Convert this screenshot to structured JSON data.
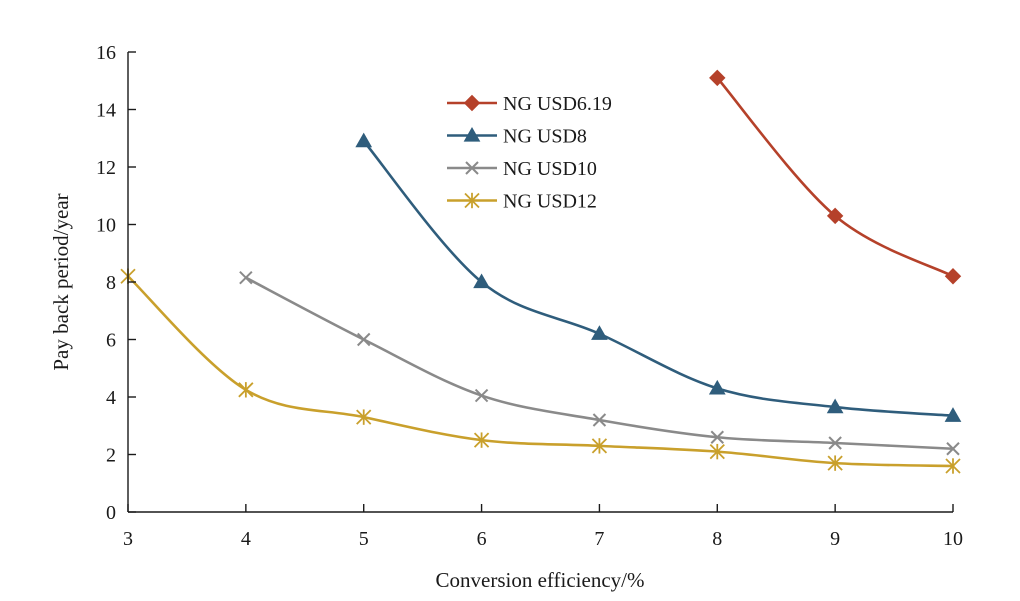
{
  "chart_data": {
    "type": "line",
    "xlabel": "Conversion efficiency/%",
    "ylabel": "Pay back period/year",
    "xlim": [
      3,
      10
    ],
    "ylim": [
      0,
      16
    ],
    "x_ticks": [
      3,
      4,
      5,
      6,
      7,
      8,
      9,
      10
    ],
    "y_ticks": [
      0,
      2,
      4,
      6,
      8,
      10,
      12,
      14,
      16
    ],
    "grid": false,
    "legend_position": "top-center",
    "series": [
      {
        "name": "NG USD6.19",
        "color": "#b5412a",
        "marker": "diamond",
        "x": [
          8,
          9,
          10
        ],
        "values": [
          15.1,
          10.3,
          8.2
        ]
      },
      {
        "name": "NG USD8",
        "color": "#2f5d7c",
        "marker": "triangle",
        "x": [
          5,
          6,
          7,
          8,
          9,
          10
        ],
        "values": [
          12.9,
          8.0,
          6.2,
          4.3,
          3.65,
          3.35
        ]
      },
      {
        "name": "NG USD10",
        "color": "#8a8a8a",
        "marker": "x",
        "x": [
          4,
          5,
          6,
          7,
          8,
          9,
          10
        ],
        "values": [
          8.15,
          6.0,
          4.05,
          3.2,
          2.6,
          2.4,
          2.2
        ]
      },
      {
        "name": "NG USD12",
        "color": "#c9a02c",
        "marker": "star",
        "x": [
          3,
          4,
          5,
          6,
          7,
          8,
          9,
          10
        ],
        "values": [
          8.2,
          4.25,
          3.3,
          2.5,
          2.3,
          2.1,
          1.7,
          1.6
        ]
      }
    ]
  }
}
